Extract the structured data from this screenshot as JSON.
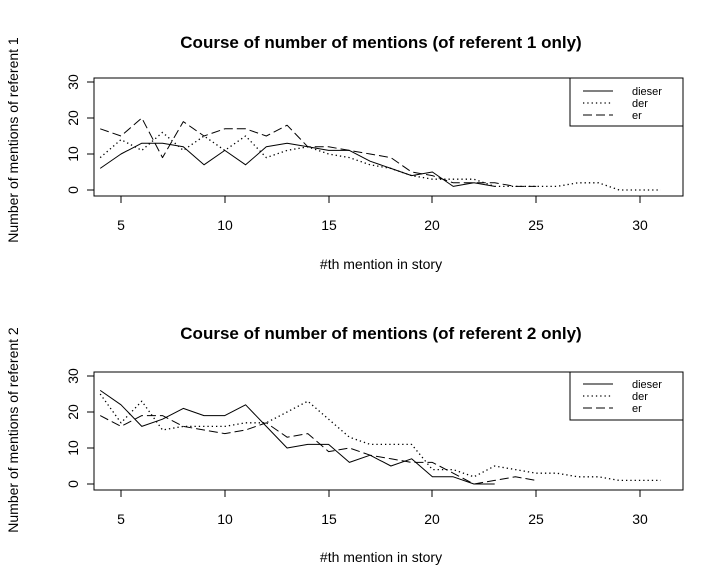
{
  "chart_data": [
    {
      "type": "line",
      "title": "Course of number of mentions (of referent 1 only)",
      "xlabel": "#th mention in story",
      "ylabel": "Number of mentions of referent 1",
      "xlim": [
        4,
        31
      ],
      "ylim": [
        0,
        30
      ],
      "xticks": [
        "5",
        "10",
        "15",
        "20",
        "25",
        "30"
      ],
      "yticks": [
        "0",
        "10",
        "20",
        "30"
      ],
      "legend_position": "top-right",
      "series": [
        {
          "name": "dieser",
          "style": "solid",
          "x": [
            4,
            5,
            6,
            7,
            8,
            9,
            10,
            11,
            12,
            13,
            14,
            15,
            16,
            17,
            18,
            19,
            20,
            21,
            22,
            23
          ],
          "y": [
            6,
            10,
            13,
            13,
            12,
            7,
            11,
            7,
            12,
            13,
            12,
            11,
            11,
            8,
            6,
            4,
            5,
            1,
            2,
            1
          ]
        },
        {
          "name": "der",
          "style": "dotted",
          "x": [
            4,
            5,
            6,
            7,
            8,
            9,
            10,
            11,
            12,
            13,
            14,
            15,
            16,
            17,
            18,
            19,
            20,
            21,
            22,
            23,
            24,
            25,
            26,
            27,
            28,
            29,
            30,
            31
          ],
          "y": [
            9,
            14,
            11,
            16,
            11,
            15,
            11,
            15,
            9,
            11,
            12,
            10,
            9,
            7,
            6,
            4,
            3,
            3,
            3,
            1,
            1,
            1,
            1,
            2,
            2,
            0,
            0,
            0
          ]
        },
        {
          "name": "er",
          "style": "dashed",
          "x": [
            4,
            5,
            6,
            7,
            8,
            9,
            10,
            11,
            12,
            13,
            14,
            15,
            16,
            17,
            18,
            19,
            20,
            21,
            22,
            23,
            24,
            25
          ],
          "y": [
            17,
            15,
            20,
            9,
            19,
            15,
            17,
            17,
            15,
            18,
            12,
            12,
            11,
            10,
            9,
            5,
            4,
            2,
            2,
            2,
            1,
            1
          ]
        }
      ]
    },
    {
      "type": "line",
      "title": "Course of number of mentions (of referent 2 only)",
      "xlabel": "#th mention in story",
      "ylabel": "Number of mentions of referent 2",
      "xlim": [
        4,
        31
      ],
      "ylim": [
        0,
        30
      ],
      "xticks": [
        "5",
        "10",
        "15",
        "20",
        "25",
        "30"
      ],
      "yticks": [
        "0",
        "10",
        "20",
        "30"
      ],
      "legend_position": "top-right",
      "series": [
        {
          "name": "dieser",
          "style": "solid",
          "x": [
            4,
            5,
            6,
            7,
            8,
            9,
            10,
            11,
            12,
            13,
            14,
            15,
            16,
            17,
            18,
            19,
            20,
            21,
            22,
            23
          ],
          "y": [
            26,
            22,
            16,
            18,
            21,
            19,
            19,
            22,
            16,
            10,
            11,
            11,
            6,
            8,
            5,
            7,
            2,
            2,
            0,
            0
          ]
        },
        {
          "name": "der",
          "style": "dotted",
          "x": [
            4,
            5,
            6,
            7,
            8,
            9,
            10,
            11,
            12,
            13,
            14,
            15,
            16,
            17,
            18,
            19,
            20,
            21,
            22,
            23,
            24,
            25,
            26,
            27,
            28,
            29,
            30,
            31
          ],
          "y": [
            25,
            17,
            23,
            15,
            16,
            16,
            16,
            17,
            17,
            20,
            23,
            18,
            13,
            11,
            11,
            11,
            4,
            4,
            2,
            5,
            4,
            3,
            3,
            2,
            2,
            1,
            1,
            1
          ]
        },
        {
          "name": "er",
          "style": "dashed",
          "x": [
            4,
            5,
            6,
            7,
            8,
            9,
            10,
            11,
            12,
            13,
            14,
            15,
            16,
            17,
            18,
            19,
            20,
            21,
            22,
            23,
            24,
            25
          ],
          "y": [
            19,
            16,
            19,
            19,
            16,
            15,
            14,
            15,
            17,
            13,
            14,
            9,
            10,
            8,
            7,
            6,
            6,
            3,
            0,
            1,
            2,
            1
          ]
        }
      ]
    }
  ]
}
